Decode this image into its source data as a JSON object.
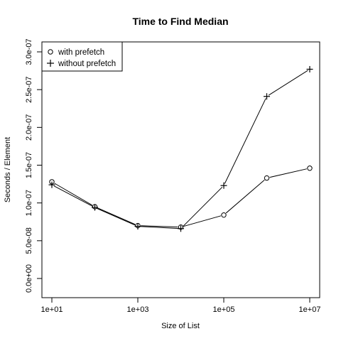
{
  "chart_data": {
    "type": "line",
    "title": "Time to Find Median",
    "xlabel": "Size of List",
    "ylabel": "Seconds / Element",
    "x_scale": "log10",
    "x": [
      10,
      100,
      1000,
      10000,
      100000,
      1000000,
      10000000
    ],
    "xlim": [
      10,
      10000000
    ],
    "ylim": [
      0,
      3e-07
    ],
    "x_ticks": [
      {
        "value": 10,
        "label": "1e+01"
      },
      {
        "value": 1000,
        "label": "1e+03"
      },
      {
        "value": 100000,
        "label": "1e+05"
      },
      {
        "value": 10000000,
        "label": "1e+07"
      }
    ],
    "y_ticks": [
      {
        "value": 0,
        "label": "0.0e+00"
      },
      {
        "value": 5e-08,
        "label": "5.0e-08"
      },
      {
        "value": 1e-07,
        "label": "1.0e-07"
      },
      {
        "value": 1.5e-07,
        "label": "1.5e-07"
      },
      {
        "value": 2e-07,
        "label": "2.0e-07"
      },
      {
        "value": 2.5e-07,
        "label": "2.5e-07"
      },
      {
        "value": 3e-07,
        "label": "3.0e-07"
      }
    ],
    "grid": false,
    "legend_position": "top-left",
    "series": [
      {
        "name": "with prefetch",
        "marker": "circle",
        "values": [
          1.28e-07,
          9.5e-08,
          7e-08,
          6.8e-08,
          8.4e-08,
          1.33e-07,
          1.46e-07
        ]
      },
      {
        "name": "without prefetch",
        "marker": "plus",
        "values": [
          1.24e-07,
          9.4e-08,
          6.9e-08,
          6.6e-08,
          1.23e-07,
          2.41e-07,
          2.77e-07
        ]
      }
    ]
  }
}
